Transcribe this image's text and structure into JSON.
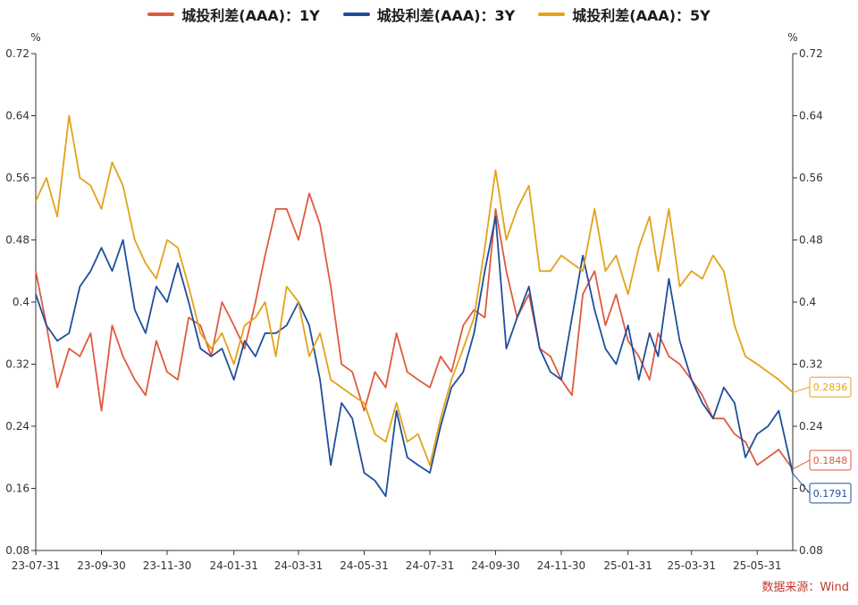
{
  "chart_data": {
    "type": "line",
    "title": "",
    "xlabel": "",
    "ylabel": "%",
    "ylabel_right": "%",
    "ylim": [
      0.08,
      0.72
    ],
    "yticks": [
      "0.08",
      "0.16",
      "0.24",
      "0.32",
      "0.4",
      "0.48",
      "0.56",
      "0.64",
      "0.72"
    ],
    "xlim": [
      "2023-07-31",
      "2025-07-03"
    ],
    "xticks": [
      {
        "date": "2023-07-31",
        "label": "23-07-31"
      },
      {
        "date": "2023-09-30",
        "label": "23-09-30"
      },
      {
        "date": "2023-11-30",
        "label": "23-11-30"
      },
      {
        "date": "2024-01-31",
        "label": "24-01-31"
      },
      {
        "date": "2024-03-31",
        "label": "24-03-31"
      },
      {
        "date": "2024-05-31",
        "label": "24-05-31"
      },
      {
        "date": "2024-07-31",
        "label": "24-07-31"
      },
      {
        "date": "2024-09-30",
        "label": "24-09-30"
      },
      {
        "date": "2024-11-30",
        "label": "24-11-30"
      },
      {
        "date": "2025-01-31",
        "label": "25-01-31"
      },
      {
        "date": "2025-03-31",
        "label": "25-03-31"
      },
      {
        "date": "2025-05-31",
        "label": "25-05-31"
      }
    ],
    "legend_position": "top-center",
    "grid": false,
    "series": [
      {
        "name": "城投利差(AAA)：1Y",
        "color": "#e05a3f",
        "last_label": "0.1848",
        "x": [
          "2023-07-31",
          "2023-08-10",
          "2023-08-20",
          "2023-08-31",
          "2023-09-10",
          "2023-09-20",
          "2023-09-30",
          "2023-10-10",
          "2023-10-20",
          "2023-10-31",
          "2023-11-10",
          "2023-11-20",
          "2023-11-30",
          "2023-12-10",
          "2023-12-20",
          "2023-12-31",
          "2024-01-10",
          "2024-01-20",
          "2024-01-31",
          "2024-02-10",
          "2024-02-20",
          "2024-02-29",
          "2024-03-10",
          "2024-03-20",
          "2024-03-31",
          "2024-04-10",
          "2024-04-20",
          "2024-04-30",
          "2024-05-10",
          "2024-05-20",
          "2024-05-31",
          "2024-06-10",
          "2024-06-20",
          "2024-06-30",
          "2024-07-10",
          "2024-07-20",
          "2024-07-31",
          "2024-08-10",
          "2024-08-20",
          "2024-08-31",
          "2024-09-10",
          "2024-09-20",
          "2024-09-30",
          "2024-10-10",
          "2024-10-20",
          "2024-10-31",
          "2024-11-10",
          "2024-11-20",
          "2024-11-30",
          "2024-12-10",
          "2024-12-20",
          "2024-12-31",
          "2025-01-10",
          "2025-01-20",
          "2025-01-31",
          "2025-02-10",
          "2025-02-20",
          "2025-02-28",
          "2025-03-10",
          "2025-03-20",
          "2025-03-31",
          "2025-04-10",
          "2025-04-20",
          "2025-04-30",
          "2025-05-10",
          "2025-05-20",
          "2025-05-31",
          "2025-06-10",
          "2025-06-20",
          "2025-07-03"
        ],
        "values": [
          0.44,
          0.37,
          0.29,
          0.34,
          0.33,
          0.36,
          0.26,
          0.37,
          0.33,
          0.3,
          0.28,
          0.35,
          0.31,
          0.3,
          0.38,
          0.37,
          0.33,
          0.4,
          0.37,
          0.34,
          0.4,
          0.46,
          0.52,
          0.52,
          0.48,
          0.54,
          0.5,
          0.42,
          0.32,
          0.31,
          0.26,
          0.31,
          0.29,
          0.36,
          0.31,
          0.3,
          0.29,
          0.33,
          0.31,
          0.37,
          0.39,
          0.38,
          0.52,
          0.44,
          0.38,
          0.41,
          0.34,
          0.33,
          0.3,
          0.28,
          0.41,
          0.44,
          0.37,
          0.41,
          0.35,
          0.33,
          0.3,
          0.36,
          0.33,
          0.32,
          0.3,
          0.28,
          0.25,
          0.25,
          0.23,
          0.22,
          0.19,
          0.2,
          0.21,
          0.1848
        ]
      },
      {
        "name": "城投利差(AAA)：3Y",
        "color": "#1f4e9c",
        "last_label": "0.1791",
        "x": [
          "2023-07-31",
          "2023-08-10",
          "2023-08-20",
          "2023-08-31",
          "2023-09-10",
          "2023-09-20",
          "2023-09-30",
          "2023-10-10",
          "2023-10-20",
          "2023-10-31",
          "2023-11-10",
          "2023-11-20",
          "2023-11-30",
          "2023-12-10",
          "2023-12-20",
          "2023-12-31",
          "2024-01-10",
          "2024-01-20",
          "2024-01-31",
          "2024-02-10",
          "2024-02-20",
          "2024-02-29",
          "2024-03-10",
          "2024-03-20",
          "2024-03-31",
          "2024-04-10",
          "2024-04-20",
          "2024-04-30",
          "2024-05-10",
          "2024-05-20",
          "2024-05-31",
          "2024-06-10",
          "2024-06-20",
          "2024-06-30",
          "2024-07-10",
          "2024-07-20",
          "2024-07-31",
          "2024-08-10",
          "2024-08-20",
          "2024-08-31",
          "2024-09-10",
          "2024-09-20",
          "2024-09-30",
          "2024-10-10",
          "2024-10-20",
          "2024-10-31",
          "2024-11-10",
          "2024-11-20",
          "2024-11-30",
          "2024-12-10",
          "2024-12-20",
          "2024-12-31",
          "2025-01-10",
          "2025-01-20",
          "2025-01-31",
          "2025-02-10",
          "2025-02-20",
          "2025-02-28",
          "2025-03-10",
          "2025-03-20",
          "2025-03-31",
          "2025-04-10",
          "2025-04-20",
          "2025-04-30",
          "2025-05-10",
          "2025-05-20",
          "2025-05-31",
          "2025-06-10",
          "2025-06-20",
          "2025-07-03"
        ],
        "values": [
          0.41,
          0.37,
          0.35,
          0.36,
          0.42,
          0.44,
          0.47,
          0.44,
          0.48,
          0.39,
          0.36,
          0.42,
          0.4,
          0.45,
          0.4,
          0.34,
          0.33,
          0.34,
          0.3,
          0.35,
          0.33,
          0.36,
          0.36,
          0.37,
          0.4,
          0.37,
          0.3,
          0.19,
          0.27,
          0.25,
          0.18,
          0.17,
          0.15,
          0.26,
          0.2,
          0.19,
          0.18,
          0.24,
          0.29,
          0.31,
          0.36,
          0.44,
          0.51,
          0.34,
          0.38,
          0.42,
          0.34,
          0.31,
          0.3,
          0.38,
          0.46,
          0.39,
          0.34,
          0.32,
          0.37,
          0.3,
          0.36,
          0.33,
          0.43,
          0.35,
          0.3,
          0.27,
          0.25,
          0.29,
          0.27,
          0.2,
          0.23,
          0.24,
          0.26,
          0.1791
        ]
      },
      {
        "name": "城投利差(AAA)：5Y",
        "color": "#e3a21a",
        "last_label": "0.2836",
        "x": [
          "2023-07-31",
          "2023-08-10",
          "2023-08-20",
          "2023-08-31",
          "2023-09-10",
          "2023-09-20",
          "2023-09-30",
          "2023-10-10",
          "2023-10-20",
          "2023-10-31",
          "2023-11-10",
          "2023-11-20",
          "2023-11-30",
          "2023-12-10",
          "2023-12-20",
          "2023-12-31",
          "2024-01-10",
          "2024-01-20",
          "2024-01-31",
          "2024-02-10",
          "2024-02-20",
          "2024-02-29",
          "2024-03-10",
          "2024-03-20",
          "2024-03-31",
          "2024-04-10",
          "2024-04-20",
          "2024-04-30",
          "2024-05-10",
          "2024-05-20",
          "2024-05-31",
          "2024-06-10",
          "2024-06-20",
          "2024-06-30",
          "2024-07-10",
          "2024-07-20",
          "2024-07-31",
          "2024-08-10",
          "2024-08-20",
          "2024-08-31",
          "2024-09-10",
          "2024-09-20",
          "2024-09-30",
          "2024-10-10",
          "2024-10-20",
          "2024-10-31",
          "2024-11-10",
          "2024-11-20",
          "2024-11-30",
          "2024-12-10",
          "2024-12-20",
          "2024-12-31",
          "2025-01-10",
          "2025-01-20",
          "2025-01-31",
          "2025-02-10",
          "2025-02-20",
          "2025-02-28",
          "2025-03-10",
          "2025-03-20",
          "2025-03-31",
          "2025-04-10",
          "2025-04-20",
          "2025-04-30",
          "2025-05-10",
          "2025-05-20",
          "2025-05-31",
          "2025-06-10",
          "2025-06-20",
          "2025-07-03"
        ],
        "values": [
          0.53,
          0.56,
          0.51,
          0.64,
          0.56,
          0.55,
          0.52,
          0.58,
          0.55,
          0.48,
          0.45,
          0.43,
          0.48,
          0.47,
          0.42,
          0.36,
          0.34,
          0.36,
          0.32,
          0.37,
          0.38,
          0.4,
          0.33,
          0.42,
          0.4,
          0.33,
          0.36,
          0.3,
          0.29,
          0.28,
          0.27,
          0.23,
          0.22,
          0.27,
          0.22,
          0.23,
          0.19,
          0.25,
          0.3,
          0.34,
          0.38,
          0.47,
          0.57,
          0.48,
          0.52,
          0.55,
          0.44,
          0.44,
          0.46,
          0.45,
          0.44,
          0.52,
          0.44,
          0.46,
          0.41,
          0.47,
          0.51,
          0.44,
          0.52,
          0.42,
          0.44,
          0.43,
          0.46,
          0.44,
          0.37,
          0.33,
          0.32,
          0.31,
          0.3,
          0.2836
        ]
      }
    ]
  },
  "source": "数据来源：Wind"
}
